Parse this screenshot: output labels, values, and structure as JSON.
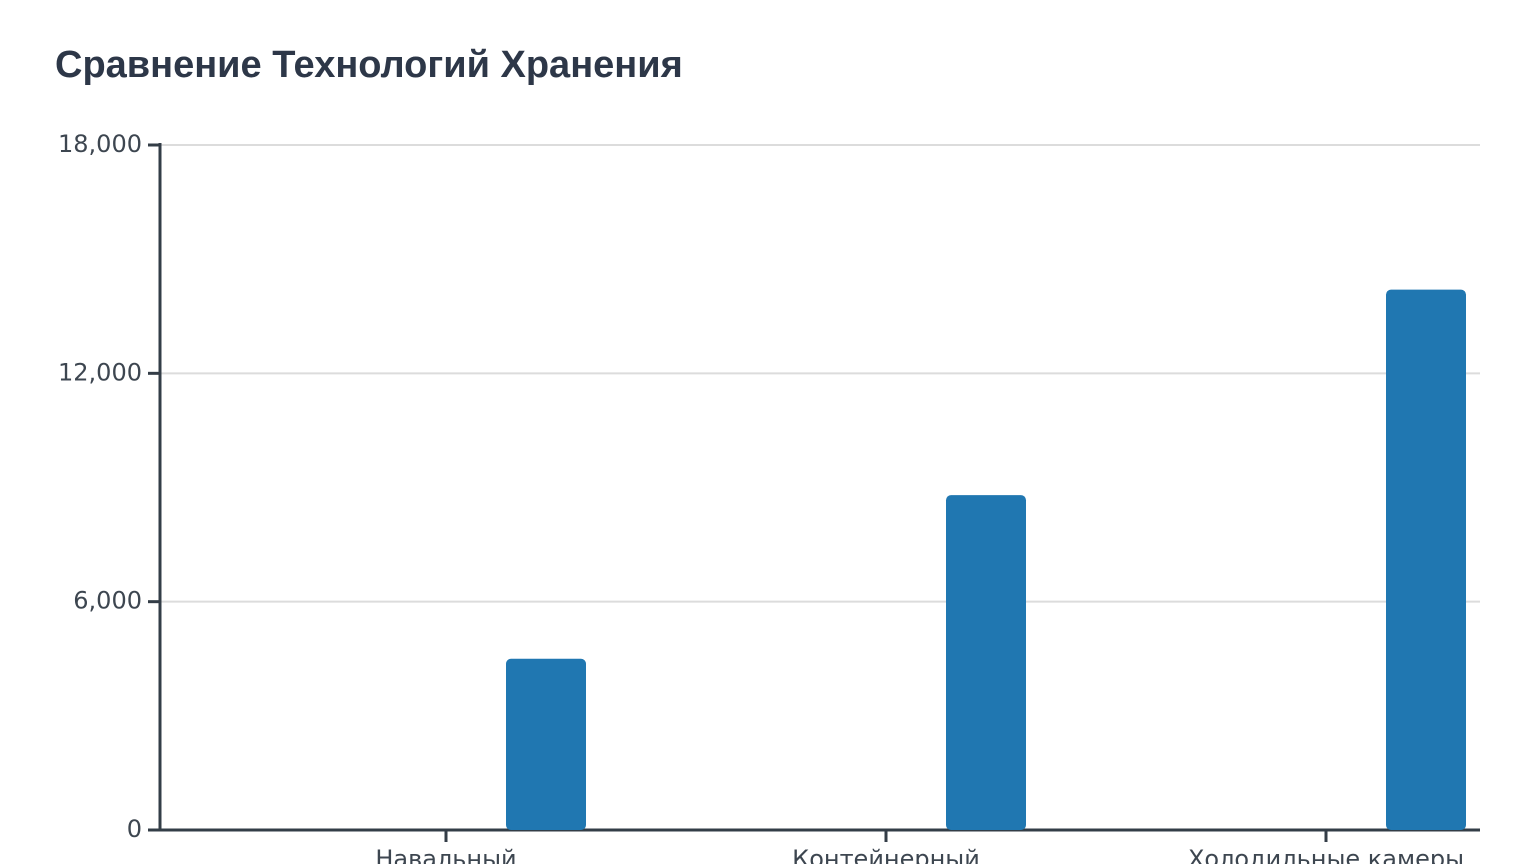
{
  "chart_data": {
    "type": "bar",
    "title": "Сравнение Технологий Хранения",
    "categories": [
      "Навальный",
      "Контейнерный",
      "Холодильные камеры"
    ],
    "values": [
      4500,
      8800,
      14200
    ],
    "color": "#2077b1",
    "ylim": [
      0,
      18000
    ],
    "yticks": [
      0,
      {
        "value": 6000,
        "label": "6,000"
      },
      {
        "value": 12000,
        "label": "12,000"
      },
      {
        "value": 18000,
        "label": "18,000"
      }
    ],
    "grid": true
  }
}
